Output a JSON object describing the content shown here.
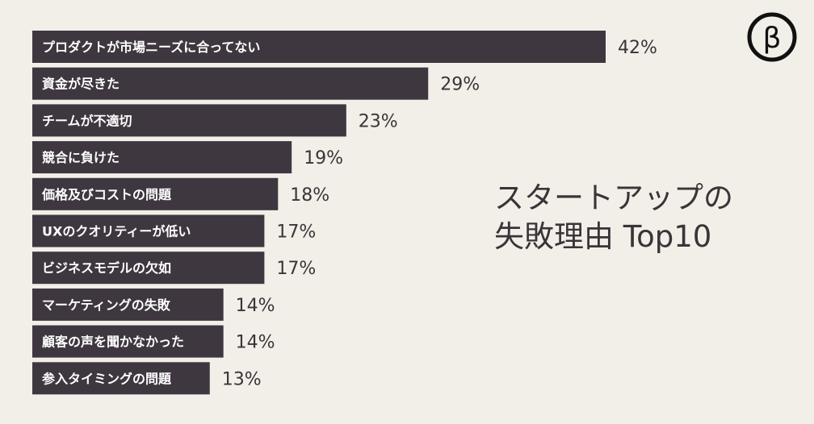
{
  "title_lines": [
    "スタートアップの",
    "失敗理由 Top10"
  ],
  "logo": {
    "icon": "beta-logo-icon",
    "glyph": "β"
  },
  "colors": {
    "bar": "#3f373f",
    "background": "#f2efe9",
    "text": "#3a3438"
  },
  "chart_data": {
    "type": "bar",
    "orientation": "horizontal",
    "title": "スタートアップの失敗理由 Top10",
    "categories": [
      "プロダクトが市場ニーズに合ってない",
      "資金が尽きた",
      "チームが不適切",
      "競合に負けた",
      "価格及びコストの問題",
      "UXのクオリティーが低い",
      "ビジネスモデルの欠如",
      "マーケティングの失敗",
      "顧客の声を聞かなかった",
      "参入タイミングの問題"
    ],
    "values": [
      42,
      29,
      23,
      19,
      18,
      17,
      17,
      14,
      14,
      13
    ],
    "value_labels": [
      "42%",
      "29%",
      "23%",
      "19%",
      "18%",
      "17%",
      "17%",
      "14%",
      "14%",
      "13%"
    ],
    "unit": "%",
    "grid": false,
    "legend": "none"
  }
}
